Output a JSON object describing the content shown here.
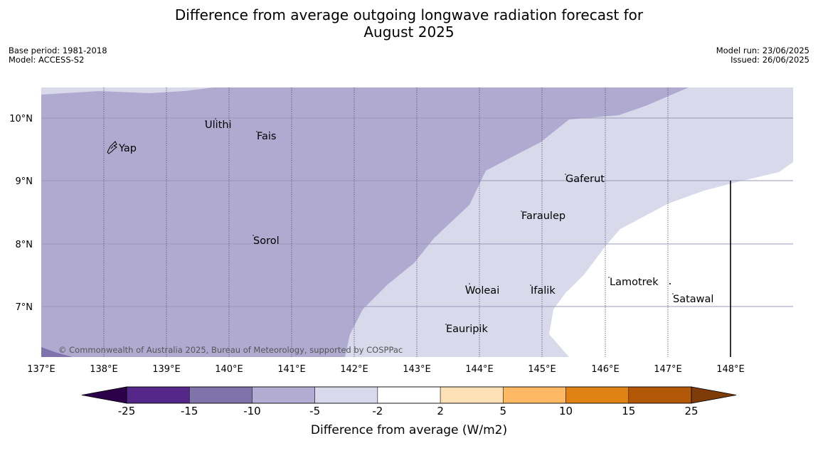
{
  "title": {
    "line1": "Difference from average outgoing longwave radiation forecast for",
    "line2": "August 2025"
  },
  "meta": {
    "base_period": "Base period: 1981-2018",
    "model": "Model: ACCESS-S2",
    "model_run": "Model run: 23/06/2025",
    "issued": "Issued: 26/06/2025"
  },
  "map": {
    "lon_ticks": [
      "137°E",
      "138°E",
      "139°E",
      "140°E",
      "141°E",
      "142°E",
      "143°E",
      "144°E",
      "145°E",
      "146°E",
      "147°E",
      "148°E"
    ],
    "lat_ticks": [
      "10°N",
      "9°N",
      "8°N",
      "7°N"
    ],
    "places": [
      {
        "name": "Ulithi"
      },
      {
        "name": "Fais"
      },
      {
        "name": "Yap"
      },
      {
        "name": "Gaferut"
      },
      {
        "name": "Faraulep"
      },
      {
        "name": "Sorol"
      },
      {
        "name": "Lamotrek"
      },
      {
        "name": "Woleai"
      },
      {
        "name": "Ifalik"
      },
      {
        "name": "Satawal"
      },
      {
        "name": "Eauripik"
      }
    ],
    "copyright": "© Commonwealth of Australia 2025, Bureau of Meteorology, supported by COSPPac"
  },
  "colorbar": {
    "label": "Difference from average (W/m2)",
    "ticks": [
      "-25",
      "-15",
      "-10",
      "-5",
      "-2",
      "2",
      "5",
      "10",
      "15",
      "25"
    ],
    "colors": {
      "below_min": "#2d004b",
      "bins": [
        "#542788",
        "#8073ac",
        "#b2abd2",
        "#d8daeb",
        "#ffffff",
        "#fee0b6",
        "#fdb863",
        "#e08214",
        "#b35806"
      ],
      "above_max": "#7f3b08"
    }
  }
}
